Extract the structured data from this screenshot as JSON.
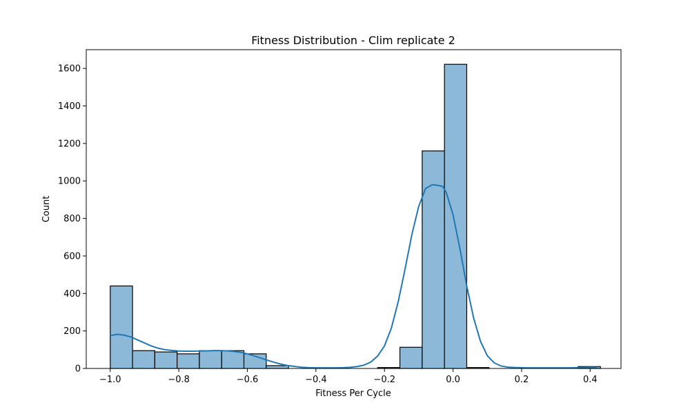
{
  "chart_data": {
    "type": "bar",
    "subtype": "histogram-with-kde",
    "title": "Fitness Distribution - Clim replicate 2",
    "xlabel": "Fitness Per Cycle",
    "ylabel": "Count",
    "xlim": [
      -1.07,
      0.49
    ],
    "ylim": [
      0,
      1700
    ],
    "xticks": [
      -1.0,
      -0.8,
      -0.6,
      -0.4,
      -0.2,
      0.0,
      0.2,
      0.4
    ],
    "xtick_labels": [
      "−1.0",
      "−0.8",
      "−0.6",
      "−0.4",
      "−0.2",
      "0.0",
      "0.2",
      "0.4"
    ],
    "yticks": [
      0,
      200,
      400,
      600,
      800,
      1000,
      1200,
      1400,
      1600
    ],
    "ytick_labels": [
      "0",
      "200",
      "400",
      "600",
      "800",
      "1000",
      "1200",
      "1400",
      "1600"
    ],
    "grid": false,
    "bar_color": "#8db9d9",
    "bar_edge_color": "#000000",
    "kde_color": "#1f77b4",
    "bins": [
      {
        "x0": -1.0,
        "x1": -0.935,
        "count": 440
      },
      {
        "x0": -0.935,
        "x1": -0.87,
        "count": 95
      },
      {
        "x0": -0.87,
        "x1": -0.805,
        "count": 88
      },
      {
        "x0": -0.805,
        "x1": -0.74,
        "count": 78
      },
      {
        "x0": -0.74,
        "x1": -0.675,
        "count": 95
      },
      {
        "x0": -0.675,
        "x1": -0.61,
        "count": 95
      },
      {
        "x0": -0.61,
        "x1": -0.545,
        "count": 78
      },
      {
        "x0": -0.545,
        "x1": -0.48,
        "count": 15
      },
      {
        "x0": -0.48,
        "x1": -0.415,
        "count": 0
      },
      {
        "x0": -0.415,
        "x1": -0.35,
        "count": 0
      },
      {
        "x0": -0.35,
        "x1": -0.285,
        "count": 0
      },
      {
        "x0": -0.285,
        "x1": -0.22,
        "count": 0
      },
      {
        "x0": -0.22,
        "x1": -0.155,
        "count": 5
      },
      {
        "x0": -0.155,
        "x1": -0.09,
        "count": 113
      },
      {
        "x0": -0.09,
        "x1": -0.025,
        "count": 1160
      },
      {
        "x0": -0.025,
        "x1": 0.04,
        "count": 1622
      },
      {
        "x0": 0.04,
        "x1": 0.105,
        "count": 5
      },
      {
        "x0": 0.105,
        "x1": 0.17,
        "count": 0
      },
      {
        "x0": 0.17,
        "x1": 0.235,
        "count": 0
      },
      {
        "x0": 0.235,
        "x1": 0.3,
        "count": 0
      },
      {
        "x0": 0.3,
        "x1": 0.365,
        "count": 0
      },
      {
        "x0": 0.365,
        "x1": 0.43,
        "count": 10
      }
    ],
    "kde": {
      "x": [
        -1.0,
        -0.98,
        -0.96,
        -0.94,
        -0.92,
        -0.9,
        -0.88,
        -0.86,
        -0.84,
        -0.82,
        -0.8,
        -0.78,
        -0.76,
        -0.74,
        -0.72,
        -0.7,
        -0.68,
        -0.66,
        -0.64,
        -0.62,
        -0.6,
        -0.58,
        -0.56,
        -0.54,
        -0.52,
        -0.5,
        -0.48,
        -0.46,
        -0.44,
        -0.42,
        -0.4,
        -0.38,
        -0.36,
        -0.34,
        -0.32,
        -0.3,
        -0.28,
        -0.26,
        -0.24,
        -0.22,
        -0.2,
        -0.18,
        -0.16,
        -0.14,
        -0.12,
        -0.1,
        -0.08,
        -0.06,
        -0.04,
        -0.03,
        -0.02,
        0.0,
        0.02,
        0.04,
        0.06,
        0.08,
        0.1,
        0.12,
        0.14,
        0.16,
        0.18,
        0.2,
        0.22,
        0.24,
        0.26,
        0.28,
        0.3,
        0.32,
        0.34,
        0.36,
        0.38,
        0.4,
        0.42
      ],
      "y": [
        175,
        182,
        178,
        168,
        152,
        136,
        120,
        108,
        100,
        96,
        93,
        92,
        92,
        93,
        94,
        95,
        95,
        94,
        91,
        86,
        78,
        67,
        55,
        43,
        32,
        22,
        15,
        10,
        6,
        4,
        3,
        3,
        3,
        3,
        4,
        6,
        10,
        18,
        34,
        66,
        120,
        215,
        355,
        530,
        715,
        865,
        960,
        980,
        975,
        970,
        940,
        820,
        640,
        440,
        270,
        145,
        68,
        30,
        13,
        7,
        5,
        4,
        3,
        3,
        3,
        3,
        3,
        3,
        3,
        4,
        5,
        6,
        6
      ]
    }
  }
}
